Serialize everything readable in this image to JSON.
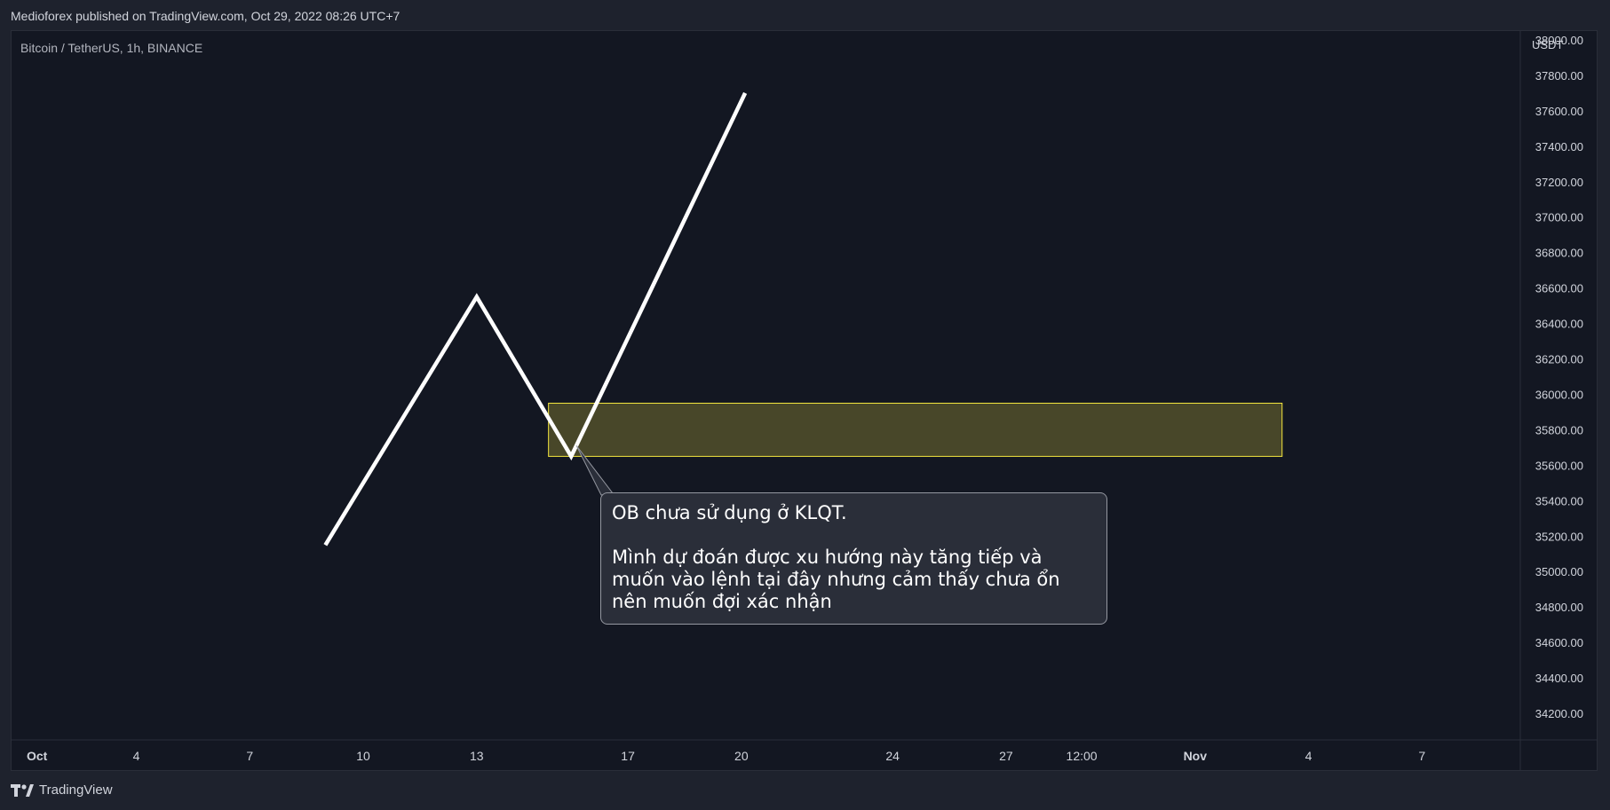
{
  "header": {
    "published_text": "Medioforex published on TradingView.com, Oct 29, 2022 08:26 UTC+7"
  },
  "chart_meta": {
    "pair_label": "Bitcoin / TetherUS, 1h, BINANCE"
  },
  "annotation": {
    "title": "OB chưa sử dụng ở KLQT.",
    "body": "Mình dự đoán được xu hướng này tăng tiếp và\nmuốn vào lệnh tại đây nhưng cảm thấy chưa ổn\nnên muốn đợi xác nhận"
  },
  "footer": {
    "brand": "TradingView"
  },
  "colors": {
    "background": "#131722",
    "outer_background": "#1e222d",
    "line": "#ffffff",
    "zone_fill": "#4b4a2a",
    "zone_border": "#f5e73f",
    "axis_text": "#d1d4dc"
  },
  "chart_data": {
    "type": "line",
    "title": "",
    "xlabel": "",
    "ylabel": "USDT",
    "y_unit_label": "USDT",
    "ylim": [
      34050,
      38050
    ],
    "y_ticks": [
      38000,
      37800,
      37600,
      37400,
      37200,
      37000,
      36800,
      36600,
      36400,
      36200,
      36000,
      35800,
      35600,
      35400,
      35200,
      35000,
      34800,
      34600,
      34400,
      34200
    ],
    "y_tick_labels": [
      "38000.00",
      "37800.00",
      "37600.00",
      "37400.00",
      "37200.00",
      "37000.00",
      "36800.00",
      "36600.00",
      "36400.00",
      "36200.00",
      "36000.00",
      "35800.00",
      "35600.00",
      "35400.00",
      "35200.00",
      "35000.00",
      "34800.00",
      "34600.00",
      "34400.00",
      "34200.00"
    ],
    "x_ticks": [
      "Oct",
      "4",
      "7",
      "10",
      "13",
      "17",
      "20",
      "24",
      "27",
      "12:00",
      "Nov",
      "4",
      "7"
    ],
    "x_tick_index": [
      0,
      3,
      6,
      9,
      12,
      16,
      19,
      23,
      26,
      28,
      31,
      34,
      37
    ],
    "x_range": [
      -0.3,
      39.6
    ],
    "series": [
      {
        "x": [
          8,
          12,
          14.5,
          19.1
        ],
        "values": [
          35150,
          36550,
          35650,
          37700
        ]
      }
    ],
    "zones": [
      {
        "x_start": 13.9,
        "x_end": 33.3,
        "y_low": 35650,
        "y_high": 35950
      }
    ],
    "grid": false
  }
}
